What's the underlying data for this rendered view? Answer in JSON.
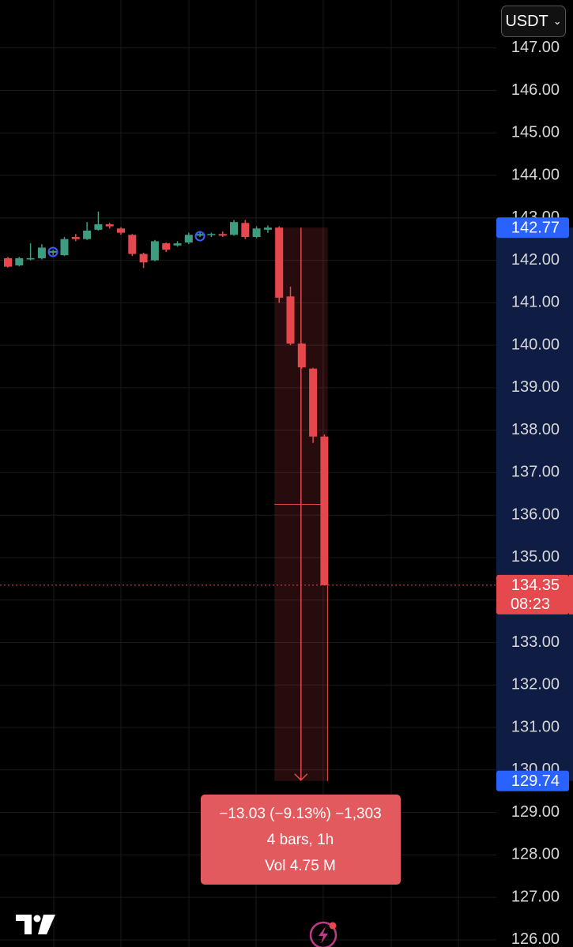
{
  "header": {
    "currency_button": "USDT"
  },
  "chart_data": {
    "type": "candlestick",
    "ylim": [
      125.83,
      148.13
    ],
    "yticks": [
      {
        "value": 147,
        "label": "147.00"
      },
      {
        "value": 146,
        "label": "146.00"
      },
      {
        "value": 145,
        "label": "145.00"
      },
      {
        "value": 144,
        "label": "144.00"
      },
      {
        "value": 143,
        "label": "143.00"
      },
      {
        "value": 142,
        "label": "142.00"
      },
      {
        "value": 141,
        "label": "141.00"
      },
      {
        "value": 140,
        "label": "140.00"
      },
      {
        "value": 139,
        "label": "139.00"
      },
      {
        "value": 138,
        "label": "138.00"
      },
      {
        "value": 137,
        "label": "137.00"
      },
      {
        "value": 136,
        "label": "136.00"
      },
      {
        "value": 135,
        "label": "135.00"
      },
      {
        "value": 134,
        "label": "134.00"
      },
      {
        "value": 133,
        "label": "133.00"
      },
      {
        "value": 132,
        "label": "132.00"
      },
      {
        "value": 131,
        "label": "131.00"
      },
      {
        "value": 130,
        "label": "130.00"
      },
      {
        "value": 129,
        "label": "129.00"
      },
      {
        "value": 128,
        "label": "128.00"
      },
      {
        "value": 127,
        "label": "127.00"
      },
      {
        "value": 126,
        "label": "126.00"
      }
    ],
    "grid": true,
    "up_color": "#3e9c80",
    "down_color": "#e5484d",
    "candles": [
      {
        "o": 142.05,
        "h": 142.08,
        "l": 141.83,
        "c": 141.85
      },
      {
        "o": 141.88,
        "h": 142.08,
        "l": 141.86,
        "c": 142.05
      },
      {
        "o": 142.02,
        "h": 142.4,
        "l": 142.0,
        "c": 142.05
      },
      {
        "o": 142.05,
        "h": 142.38,
        "l": 142.02,
        "c": 142.3
      },
      {
        "o": 142.18,
        "h": 142.25,
        "l": 142.12,
        "c": 142.22
      },
      {
        "o": 142.12,
        "h": 142.55,
        "l": 142.1,
        "c": 142.5
      },
      {
        "o": 142.55,
        "h": 142.62,
        "l": 142.45,
        "c": 142.5
      },
      {
        "o": 142.5,
        "h": 142.9,
        "l": 142.48,
        "c": 142.7
      },
      {
        "o": 142.72,
        "h": 143.15,
        "l": 142.7,
        "c": 142.85
      },
      {
        "o": 142.85,
        "h": 142.88,
        "l": 142.75,
        "c": 142.8
      },
      {
        "o": 142.75,
        "h": 142.78,
        "l": 142.6,
        "c": 142.65
      },
      {
        "o": 142.6,
        "h": 142.62,
        "l": 142.1,
        "c": 142.15
      },
      {
        "o": 142.15,
        "h": 142.18,
        "l": 141.82,
        "c": 141.95
      },
      {
        "o": 142.0,
        "h": 142.48,
        "l": 141.98,
        "c": 142.45
      },
      {
        "o": 142.4,
        "h": 142.42,
        "l": 142.2,
        "c": 142.25
      },
      {
        "o": 142.35,
        "h": 142.45,
        "l": 142.32,
        "c": 142.4
      },
      {
        "o": 142.42,
        "h": 142.65,
        "l": 142.38,
        "c": 142.6
      },
      {
        "o": 142.58,
        "h": 142.66,
        "l": 142.55,
        "c": 142.62
      },
      {
        "o": 142.6,
        "h": 142.65,
        "l": 142.55,
        "c": 142.62
      },
      {
        "o": 142.62,
        "h": 142.68,
        "l": 142.55,
        "c": 142.58
      },
      {
        "o": 142.6,
        "h": 142.95,
        "l": 142.58,
        "c": 142.9
      },
      {
        "o": 142.88,
        "h": 142.95,
        "l": 142.5,
        "c": 142.55
      },
      {
        "o": 142.55,
        "h": 142.8,
        "l": 142.52,
        "c": 142.75
      },
      {
        "o": 142.72,
        "h": 142.82,
        "l": 142.65,
        "c": 142.77
      },
      {
        "o": 142.77,
        "h": 142.8,
        "l": 141.0,
        "c": 141.12
      },
      {
        "o": 141.15,
        "h": 141.38,
        "l": 140.0,
        "c": 140.04
      },
      {
        "o": 140.04,
        "h": 140.05,
        "l": 139.45,
        "c": 139.48
      },
      {
        "o": 139.45,
        "h": 139.47,
        "l": 137.7,
        "c": 137.85
      },
      {
        "o": 137.85,
        "h": 137.9,
        "l": 134.35,
        "c": 134.35
      }
    ],
    "last_price": 134.35,
    "countdown": "08:23",
    "measure": {
      "start": 142.77,
      "end": 129.74,
      "summary": "−13.03 (−9.13%) −1,303",
      "bars": "4 bars, 1h",
      "volume": "Vol 4.75 M"
    }
  }
}
